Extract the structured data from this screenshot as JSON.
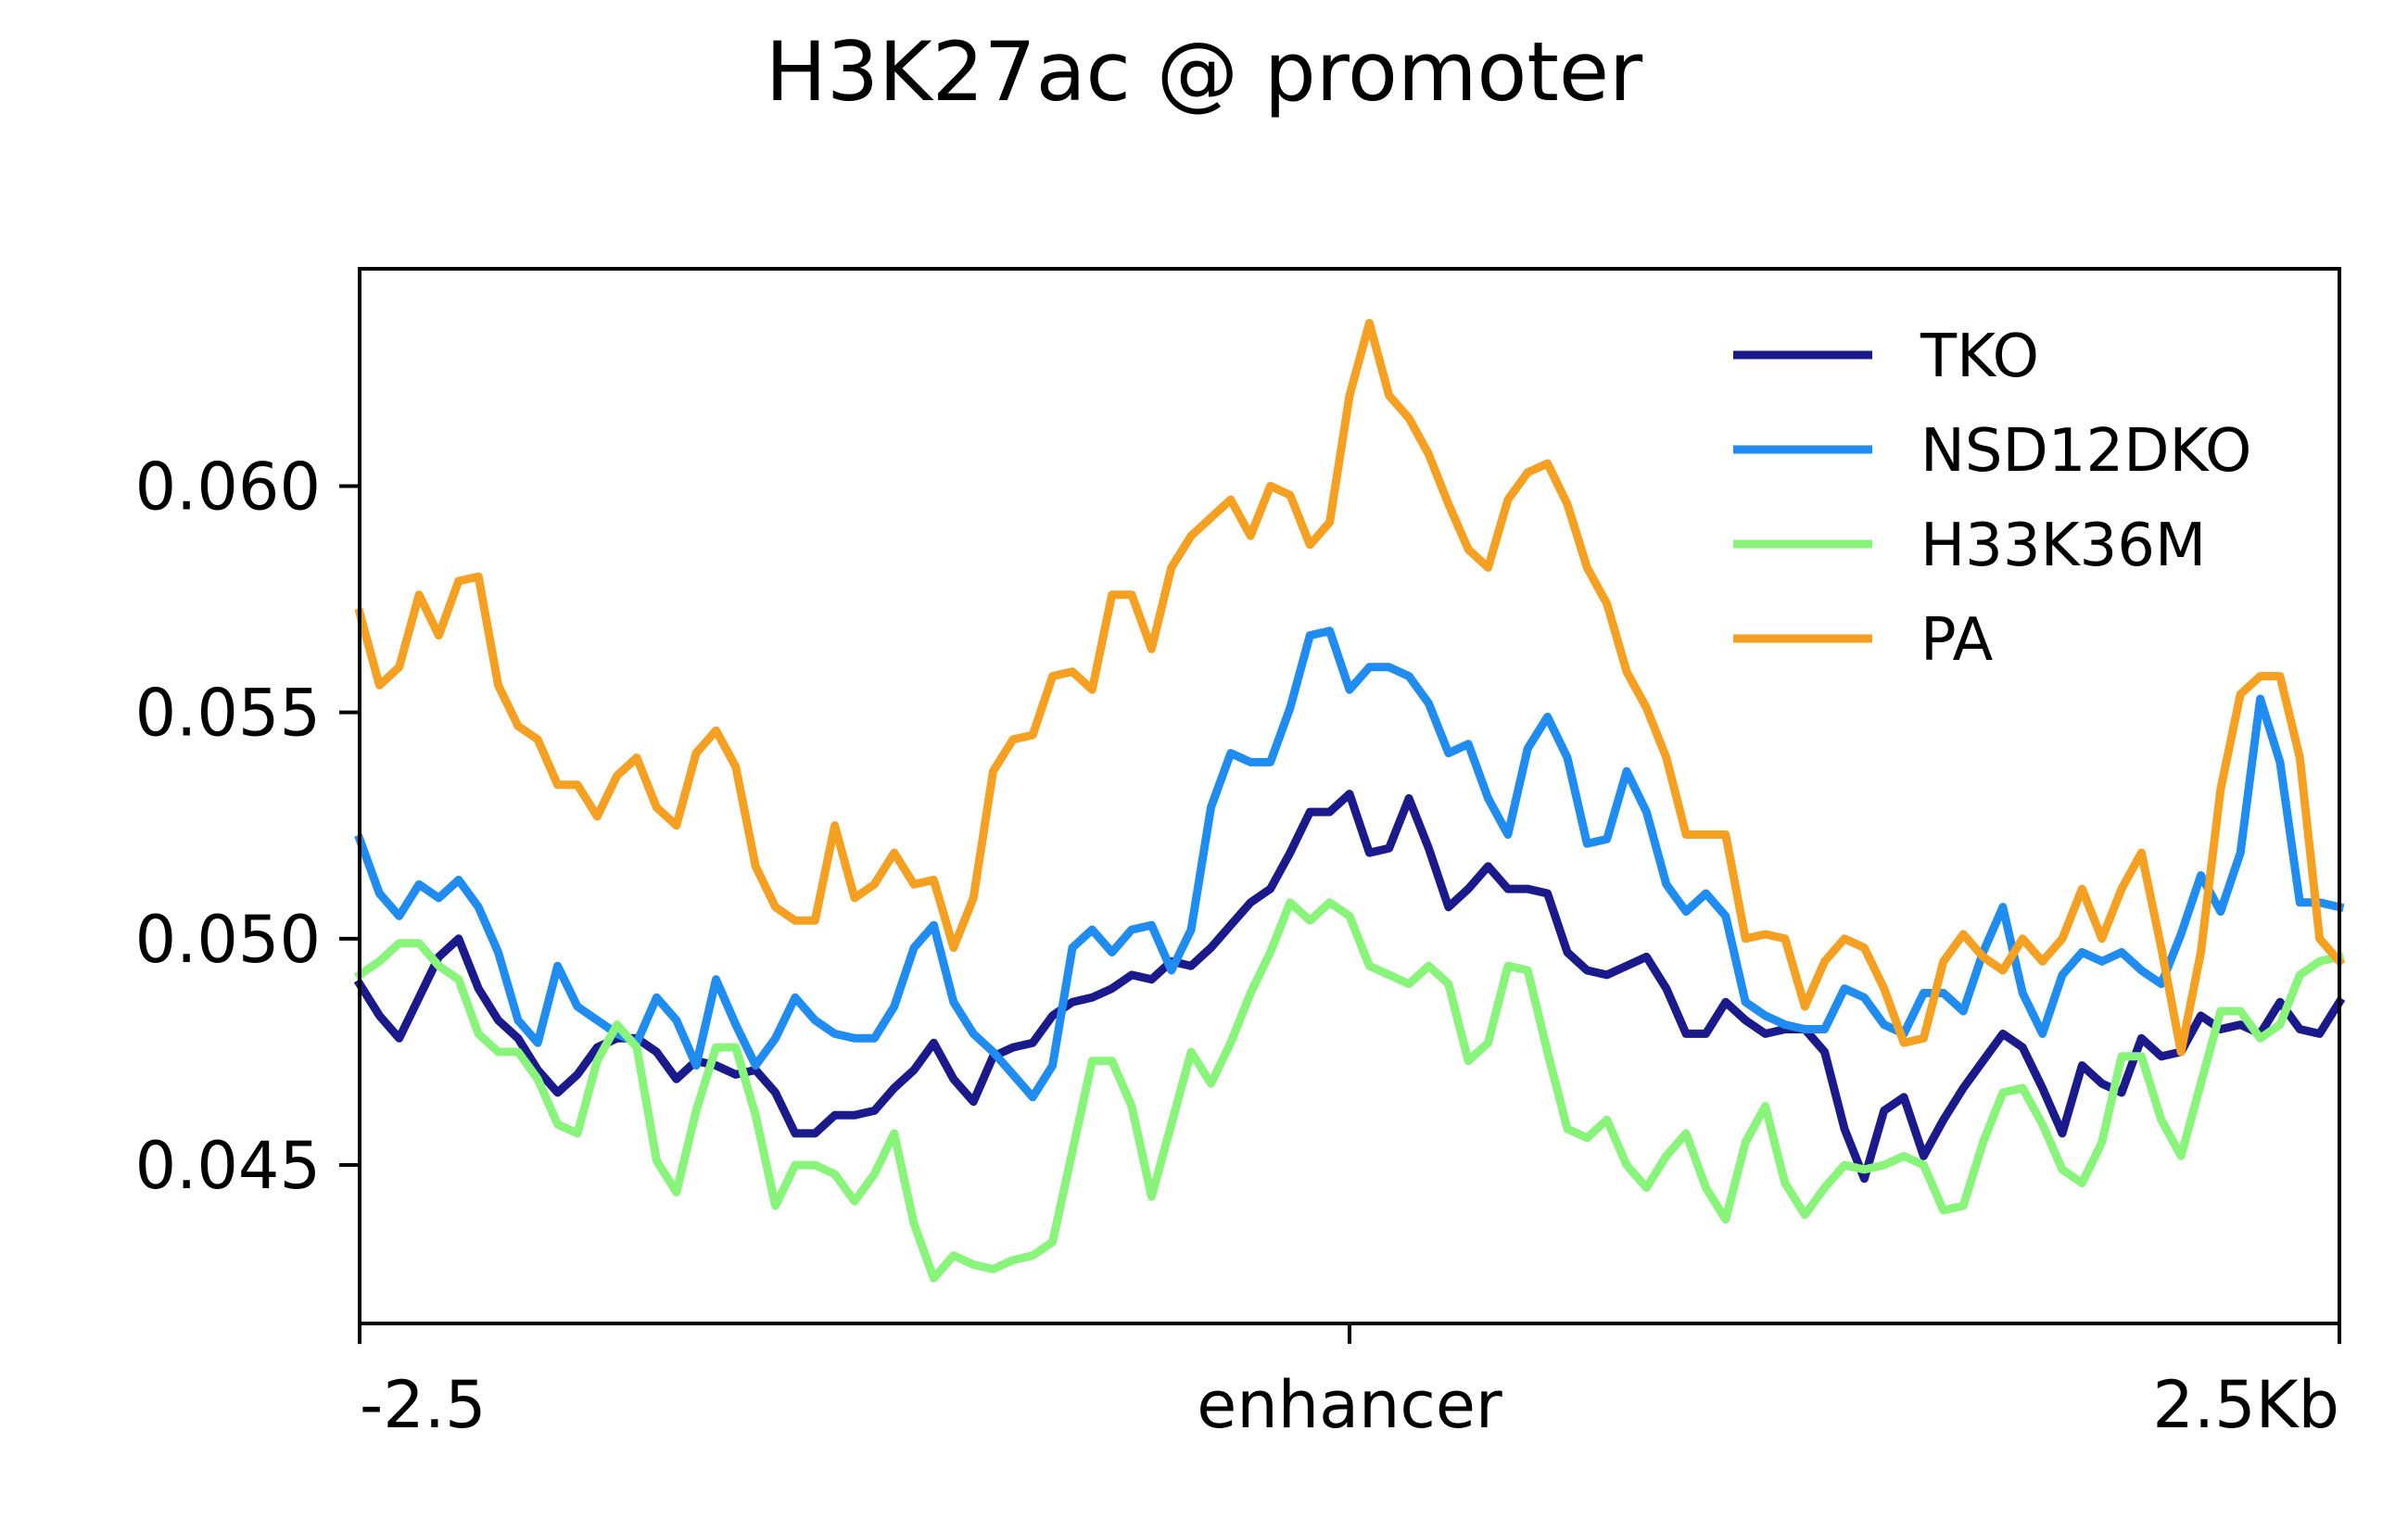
{
  "chart_data": {
    "type": "line",
    "title": "H3K27ac @ promoter",
    "xlabel": "",
    "ylabel": "",
    "x_range": [
      0,
      100
    ],
    "ylim": [
      0.0415,
      0.0648
    ],
    "x_ticks": [
      {
        "x": 0,
        "label": "-2.5"
      },
      {
        "x": 50,
        "label": "enhancer"
      },
      {
        "x": 100,
        "label": "2.5Kb"
      }
    ],
    "y_ticks": [
      {
        "y": 0.045,
        "label": "0.045"
      },
      {
        "y": 0.05,
        "label": "0.050"
      },
      {
        "y": 0.055,
        "label": "0.055"
      },
      {
        "y": 0.06,
        "label": "0.060"
      }
    ],
    "grid": false,
    "legend_position": "top-right",
    "series": [
      {
        "name": "TKO",
        "color": "#1a1a8c",
        "x": [
          0,
          1,
          2,
          3,
          4,
          5,
          6,
          7,
          8,
          9,
          10,
          11,
          12,
          13,
          14,
          15,
          16,
          17,
          18,
          19,
          20,
          21,
          22,
          23,
          24,
          25,
          26,
          27,
          28,
          29,
          30,
          31,
          32,
          33,
          34,
          35,
          36,
          37,
          38,
          39,
          40,
          41,
          42,
          43,
          44,
          45,
          46,
          47,
          48,
          49,
          50,
          51,
          52,
          53,
          54,
          55,
          56,
          57,
          58,
          59,
          60,
          61,
          62,
          63,
          64,
          65,
          66,
          67,
          68,
          69,
          70,
          71,
          72,
          73,
          74,
          75,
          76,
          77,
          78,
          79,
          80,
          81,
          82,
          83,
          84,
          85,
          86,
          87,
          88,
          89,
          90,
          91,
          92,
          93,
          94,
          95,
          96,
          97,
          98,
          99,
          100
        ],
        "values": [
          0.049,
          0.0483,
          0.0478,
          0.0487,
          0.0496,
          0.05,
          0.0489,
          0.0482,
          0.0478,
          0.0471,
          0.0466,
          0.047,
          0.0476,
          0.0478,
          0.0478,
          0.0475,
          0.0469,
          0.0473,
          0.0472,
          0.047,
          0.0471,
          0.0466,
          0.0457,
          0.0457,
          0.0461,
          0.0461,
          0.0462,
          0.0467,
          0.0471,
          0.0477,
          0.0469,
          0.0464,
          0.0474,
          0.0476,
          0.0477,
          0.0483,
          0.0486,
          0.0487,
          0.0489,
          0.0492,
          0.0491,
          0.0495,
          0.0494,
          0.0498,
          0.0503,
          0.0508,
          0.0511,
          0.0519,
          0.0528,
          0.0528,
          0.0532,
          0.0519,
          0.052,
          0.0531,
          0.052,
          0.0507,
          0.0511,
          0.0516,
          0.0511,
          0.0511,
          0.051,
          0.0497,
          0.0493,
          0.0492,
          0.0494,
          0.0496,
          0.0489,
          0.0479,
          0.0479,
          0.0486,
          0.0482,
          0.0479,
          0.048,
          0.048,
          0.0475,
          0.0458,
          0.0447,
          0.0462,
          0.0465,
          0.0452,
          0.046,
          0.0467,
          0.0473,
          0.0479,
          0.0476,
          0.0467,
          0.0457,
          0.0472,
          0.0468,
          0.0466,
          0.0478,
          0.0474,
          0.0475,
          0.0483,
          0.048,
          0.0481,
          0.0479,
          0.0486,
          0.048,
          0.0479,
          0.0486
        ]
      },
      {
        "name": "NSD12DKO",
        "color": "#1e8cf0",
        "x": [
          0,
          1,
          2,
          3,
          4,
          5,
          6,
          7,
          8,
          9,
          10,
          11,
          12,
          13,
          14,
          15,
          16,
          17,
          18,
          19,
          20,
          21,
          22,
          23,
          24,
          25,
          26,
          27,
          28,
          29,
          30,
          31,
          32,
          33,
          34,
          35,
          36,
          37,
          38,
          39,
          40,
          41,
          42,
          43,
          44,
          45,
          46,
          47,
          48,
          49,
          50,
          51,
          52,
          53,
          54,
          55,
          56,
          57,
          58,
          59,
          60,
          61,
          62,
          63,
          64,
          65,
          66,
          67,
          68,
          69,
          70,
          71,
          72,
          73,
          74,
          75,
          76,
          77,
          78,
          79,
          80,
          81,
          82,
          83,
          84,
          85,
          86,
          87,
          88,
          89,
          90,
          91,
          92,
          93,
          94,
          95,
          96,
          97,
          98,
          99,
          100
        ],
        "values": [
          0.0522,
          0.051,
          0.0505,
          0.0512,
          0.0509,
          0.0513,
          0.0507,
          0.0497,
          0.0482,
          0.0477,
          0.0494,
          0.0485,
          0.0482,
          0.0479,
          0.0477,
          0.0487,
          0.0482,
          0.0472,
          0.0491,
          0.0481,
          0.0472,
          0.0478,
          0.0487,
          0.0482,
          0.0479,
          0.0478,
          0.0478,
          0.0485,
          0.0498,
          0.0503,
          0.0486,
          0.0479,
          0.0475,
          0.047,
          0.0465,
          0.0472,
          0.0498,
          0.0502,
          0.0497,
          0.0502,
          0.0503,
          0.0493,
          0.0502,
          0.0529,
          0.0541,
          0.0539,
          0.0539,
          0.0551,
          0.0567,
          0.0568,
          0.0555,
          0.056,
          0.056,
          0.0558,
          0.0552,
          0.0541,
          0.0543,
          0.0531,
          0.0523,
          0.0542,
          0.0549,
          0.054,
          0.0521,
          0.0522,
          0.0537,
          0.0528,
          0.0512,
          0.0506,
          0.051,
          0.0505,
          0.0486,
          0.0483,
          0.0481,
          0.048,
          0.048,
          0.0489,
          0.0487,
          0.0481,
          0.0479,
          0.0488,
          0.0488,
          0.0484,
          0.0497,
          0.0507,
          0.0488,
          0.0479,
          0.0492,
          0.0497,
          0.0495,
          0.0497,
          0.0493,
          0.049,
          0.0501,
          0.0514,
          0.0506,
          0.0519,
          0.0553,
          0.0539,
          0.0508,
          0.0508,
          0.0507
        ]
      },
      {
        "name": "H33K36M",
        "color": "#88f57a",
        "x": [
          0,
          1,
          2,
          3,
          4,
          5,
          6,
          7,
          8,
          9,
          10,
          11,
          12,
          13,
          14,
          15,
          16,
          17,
          18,
          19,
          20,
          21,
          22,
          23,
          24,
          25,
          26,
          27,
          28,
          29,
          30,
          31,
          32,
          33,
          34,
          35,
          36,
          37,
          38,
          39,
          40,
          41,
          42,
          43,
          44,
          45,
          46,
          47,
          48,
          49,
          50,
          51,
          52,
          53,
          54,
          55,
          56,
          57,
          58,
          59,
          60,
          61,
          62,
          63,
          64,
          65,
          66,
          67,
          68,
          69,
          70,
          71,
          72,
          73,
          74,
          75,
          76,
          77,
          78,
          79,
          80,
          81,
          82,
          83,
          84,
          85,
          86,
          87,
          88,
          89,
          90,
          91,
          92,
          93,
          94,
          95,
          96,
          97,
          98,
          99,
          100
        ],
        "values": [
          0.0492,
          0.0495,
          0.0499,
          0.0499,
          0.0494,
          0.0491,
          0.0479,
          0.0475,
          0.0475,
          0.0469,
          0.0459,
          0.0457,
          0.0473,
          0.0481,
          0.0476,
          0.0451,
          0.0444,
          0.0462,
          0.0476,
          0.0476,
          0.0461,
          0.0441,
          0.045,
          0.045,
          0.0448,
          0.0442,
          0.0448,
          0.0457,
          0.0437,
          0.0425,
          0.043,
          0.0428,
          0.0427,
          0.0429,
          0.043,
          0.0433,
          0.0453,
          0.0473,
          0.0473,
          0.0463,
          0.0443,
          0.0459,
          0.0475,
          0.0468,
          0.0477,
          0.0488,
          0.0497,
          0.0508,
          0.0504,
          0.0508,
          0.0505,
          0.0494,
          0.0492,
          0.049,
          0.0494,
          0.049,
          0.0473,
          0.0477,
          0.0494,
          0.0493,
          0.0475,
          0.0458,
          0.0456,
          0.046,
          0.045,
          0.0445,
          0.0452,
          0.0457,
          0.0445,
          0.0438,
          0.0455,
          0.0463,
          0.0446,
          0.0439,
          0.0445,
          0.045,
          0.0449,
          0.045,
          0.0452,
          0.045,
          0.044,
          0.0441,
          0.0455,
          0.0466,
          0.0467,
          0.0459,
          0.0449,
          0.0446,
          0.0455,
          0.0474,
          0.0474,
          0.046,
          0.0452,
          0.0468,
          0.0484,
          0.0484,
          0.0478,
          0.0481,
          0.0492,
          0.0495,
          0.0496
        ]
      },
      {
        "name": "PA",
        "color": "#f5a020",
        "x": [
          0,
          1,
          2,
          3,
          4,
          5,
          6,
          7,
          8,
          9,
          10,
          11,
          12,
          13,
          14,
          15,
          16,
          17,
          18,
          19,
          20,
          21,
          22,
          23,
          24,
          25,
          26,
          27,
          28,
          29,
          30,
          31,
          32,
          33,
          34,
          35,
          36,
          37,
          38,
          39,
          40,
          41,
          42,
          43,
          44,
          45,
          46,
          47,
          48,
          49,
          50,
          51,
          52,
          53,
          54,
          55,
          56,
          57,
          58,
          59,
          60,
          61,
          62,
          63,
          64,
          65,
          66,
          67,
          68,
          69,
          70,
          71,
          72,
          73,
          74,
          75,
          76,
          77,
          78,
          79,
          80,
          81,
          82,
          83,
          84,
          85,
          86,
          87,
          88,
          89,
          90,
          91,
          92,
          93,
          94,
          95,
          96,
          97,
          98,
          99,
          100
        ],
        "values": [
          0.0572,
          0.0556,
          0.056,
          0.0576,
          0.0567,
          0.0579,
          0.058,
          0.0556,
          0.0547,
          0.0544,
          0.0534,
          0.0534,
          0.0527,
          0.0536,
          0.054,
          0.0529,
          0.0525,
          0.0541,
          0.0546,
          0.0538,
          0.0516,
          0.0507,
          0.0504,
          0.0504,
          0.0525,
          0.0509,
          0.0512,
          0.0519,
          0.0512,
          0.0513,
          0.0498,
          0.0509,
          0.0537,
          0.0544,
          0.0545,
          0.0558,
          0.0559,
          0.0555,
          0.0576,
          0.0576,
          0.0564,
          0.0582,
          0.0589,
          0.0593,
          0.0597,
          0.0589,
          0.06,
          0.0598,
          0.0587,
          0.0592,
          0.062,
          0.0636,
          0.062,
          0.0615,
          0.0607,
          0.0596,
          0.0586,
          0.0582,
          0.0597,
          0.0603,
          0.0605,
          0.0596,
          0.0582,
          0.0574,
          0.0559,
          0.0551,
          0.054,
          0.0523,
          0.0523,
          0.0523,
          0.05,
          0.0501,
          0.05,
          0.0485,
          0.0495,
          0.05,
          0.0498,
          0.0489,
          0.0477,
          0.0478,
          0.0495,
          0.0501,
          0.0496,
          0.0493,
          0.05,
          0.0495,
          0.05,
          0.0511,
          0.05,
          0.0511,
          0.0519,
          0.0498,
          0.0475,
          0.0497,
          0.0533,
          0.0554,
          0.0558,
          0.0558,
          0.054,
          0.05,
          0.0495
        ]
      }
    ]
  }
}
